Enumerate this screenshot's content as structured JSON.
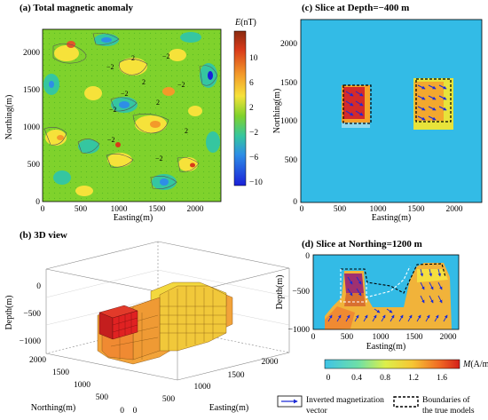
{
  "panels": {
    "a": {
      "title": "(a) Total magnetic anomaly",
      "xlabel": "Easting(m)",
      "ylabel": "Northing(m)",
      "xticks": [
        "0",
        "500",
        "1000",
        "1500",
        "2000"
      ],
      "yticks": [
        "0",
        "500",
        "1000",
        "1500",
        "2000"
      ],
      "colorbar_label_var": "E",
      "colorbar_label_unit": "(nT)",
      "colorbar_ticks": [
        "10",
        "6",
        "2",
        "−2",
        "−6",
        "−10"
      ],
      "contour_labels": [
        "−2",
        "2",
        "−2",
        "2",
        "−2",
        "−2",
        "−2",
        "2",
        "2",
        "−2",
        "−2"
      ]
    },
    "b": {
      "title": "(b) 3D view",
      "zlabel": "Depth(m)",
      "xlabel": "Easting(m)",
      "ylabel": "Northing(m)",
      "zticks": [
        "0",
        "−500",
        "−1000"
      ],
      "yticks": [
        "2000",
        "1500",
        "1000",
        "500",
        "0"
      ],
      "xticks": [
        "0",
        "500",
        "1000",
        "1500",
        "2000"
      ]
    },
    "c": {
      "title": "(c) Slice at Depth=−400 m",
      "xlabel": "Easting(m)",
      "ylabel": "Northing(m)",
      "xticks": [
        "0",
        "500",
        "1000",
        "1500",
        "2000"
      ],
      "yticks": [
        "0",
        "500",
        "1000",
        "1500",
        "2000"
      ]
    },
    "d": {
      "title": "(d) Slice at Northing=1200 m",
      "xlabel": "Easting(m)",
      "ylabel": "Depth(m)",
      "xticks": [
        "0",
        "500",
        "1000",
        "1500",
        "2000"
      ],
      "yticks": [
        "0",
        "−500",
        "−1000"
      ]
    }
  },
  "m_colorbar": {
    "label_var": "M",
    "label_unit": "(A/m)",
    "ticks": [
      "0",
      "0.4",
      "0.8",
      "1.2",
      "1.6"
    ]
  },
  "legend": {
    "inverted_line1": "Inverted magnetization",
    "inverted_line2": "vector",
    "true_line1": "Boundaries of",
    "true_line2": "the true models"
  },
  "colors": {
    "background_c": "#33bbe6",
    "magnetized_red": "#d42a2a",
    "magnetized_yellow": "#e8d23a",
    "contour_green": "#7fd22c",
    "arrow_blue": "#1c2bd6"
  }
}
